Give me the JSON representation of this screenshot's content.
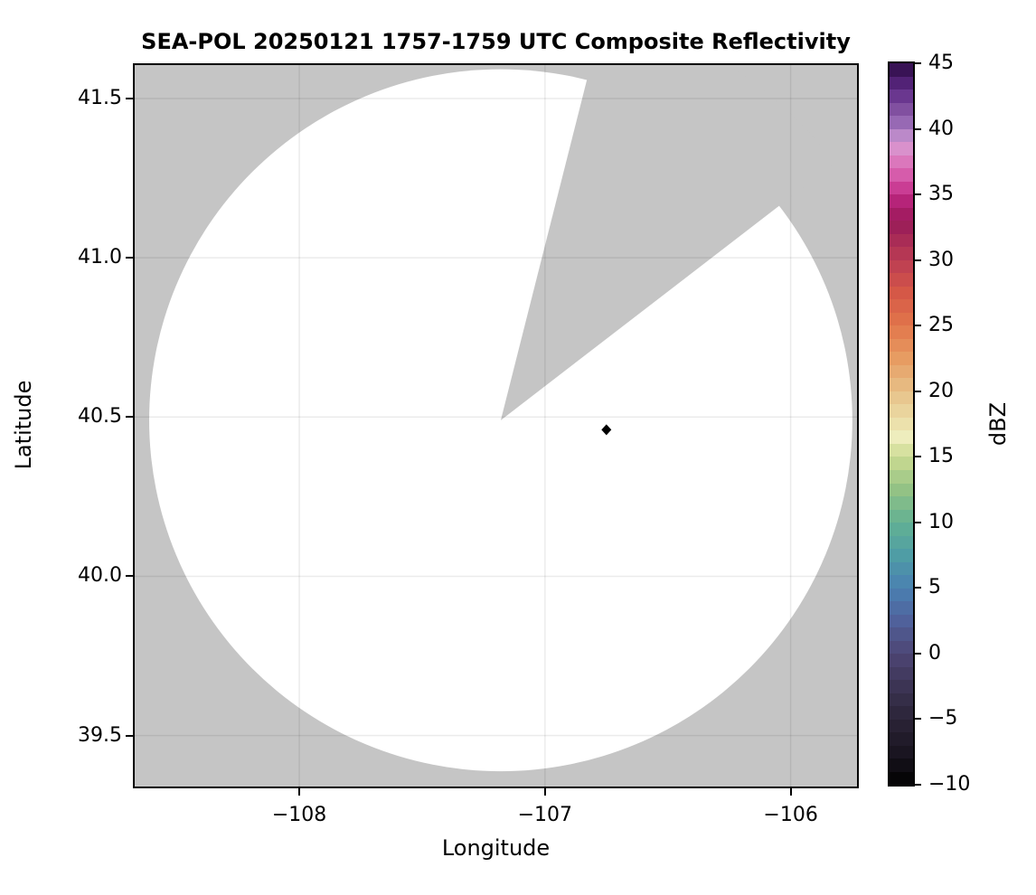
{
  "title": "SEA-POL 20250121 1757-1759 UTC Composite Reflectivity",
  "axes": {
    "xlabel": "Longitude",
    "ylabel": "Latitude",
    "xlim": [
      -108.67,
      -105.73
    ],
    "ylim": [
      39.34,
      41.605
    ],
    "x_ticks": [
      {
        "value": -108,
        "label": "−108"
      },
      {
        "value": -107,
        "label": "−107"
      },
      {
        "value": -106,
        "label": "−106"
      }
    ],
    "y_ticks": [
      {
        "value": 41.5,
        "label": "41.5"
      },
      {
        "value": 41.0,
        "label": "41.0"
      },
      {
        "value": 40.5,
        "label": "40.5"
      },
      {
        "value": 40.0,
        "label": "40.0"
      },
      {
        "value": 39.5,
        "label": "39.5"
      }
    ],
    "grid": true
  },
  "colorbar": {
    "label": "dBZ",
    "min": -10,
    "max": 45,
    "band_step_dbz": 1,
    "ticks": [
      {
        "value": 45,
        "label": "45"
      },
      {
        "value": 40,
        "label": "40"
      },
      {
        "value": 35,
        "label": "35"
      },
      {
        "value": 30,
        "label": "30"
      },
      {
        "value": 25,
        "label": "25"
      },
      {
        "value": 20,
        "label": "20"
      },
      {
        "value": 15,
        "label": "15"
      },
      {
        "value": 10,
        "label": "10"
      },
      {
        "value": 5,
        "label": "5"
      },
      {
        "value": 0,
        "label": "0"
      },
      {
        "value": -5,
        "label": "−5"
      },
      {
        "value": -10,
        "label": "−10"
      }
    ],
    "stops": [
      [
        -10,
        "#000000"
      ],
      [
        -8,
        "#16121c"
      ],
      [
        -5,
        "#2b2437"
      ],
      [
        -2.5,
        "#3c3454"
      ],
      [
        0,
        "#4d4674"
      ],
      [
        2.5,
        "#50619b"
      ],
      [
        5,
        "#4a80b2"
      ],
      [
        7.5,
        "#4f9da5"
      ],
      [
        10,
        "#62b193"
      ],
      [
        12.5,
        "#93c285"
      ],
      [
        15,
        "#cbdb92"
      ],
      [
        16.5,
        "#eeedbd"
      ],
      [
        18,
        "#ebdba4"
      ],
      [
        20,
        "#e7c088"
      ],
      [
        22.5,
        "#e79c62"
      ],
      [
        25,
        "#e2764b"
      ],
      [
        27.5,
        "#d55847"
      ],
      [
        30,
        "#bb3d53"
      ],
      [
        32.5,
        "#9d2058"
      ],
      [
        34,
        "#a81a69"
      ],
      [
        35,
        "#c42e88"
      ],
      [
        36.5,
        "#d65cab"
      ],
      [
        38,
        "#dd85c4"
      ],
      [
        39,
        "#d49cd3"
      ],
      [
        40,
        "#a276be"
      ],
      [
        41.5,
        "#8150a0"
      ],
      [
        43,
        "#5e2a86"
      ],
      [
        45,
        "#2c0b45"
      ]
    ]
  },
  "colors": {
    "outside_range_gray": "#c5c5c5",
    "coverage_fill": "#ffffff",
    "grid_line": "rgba(0,0,0,0.08)",
    "frame": "#000000",
    "marker": "#000000"
  },
  "chart_data": {
    "type": "heatmap",
    "title": "SEA-POL 20250121 1757-1759 UTC Composite Reflectivity",
    "xlabel": "Longitude",
    "ylabel": "Latitude",
    "xlim": [
      -108.67,
      -105.73
    ],
    "ylim": [
      39.34,
      41.605
    ],
    "x_tick_values": [
      -108,
      -107,
      -106
    ],
    "y_tick_values": [
      41.5,
      41.0,
      40.5,
      40.0,
      39.5
    ],
    "colorbar_label": "dBZ",
    "colorbar_range": [
      -10,
      45
    ],
    "colorbar_tick_values": [
      45,
      40,
      35,
      30,
      25,
      20,
      15,
      10,
      5,
      0,
      -5,
      -10
    ],
    "grid": true,
    "legend": "none",
    "radar": {
      "name": "SEA-POL",
      "center_lon": -107.18,
      "center_lat": 40.49,
      "coverage_radius_lon_deg": 1.431,
      "coverage_radius_lat_deg": 1.102,
      "missing_data_sector_azimuth_deg": [
        14.2,
        52.4
      ]
    },
    "field_note": "radar coverage circle is blank/white — no reflectivity echoes at or above −10 dBZ rendered; area outside range and the missing-data sector are gray",
    "point_marker": {
      "shape": "diamond",
      "color": "#000000",
      "lon": -106.75,
      "lat": 40.46
    }
  }
}
